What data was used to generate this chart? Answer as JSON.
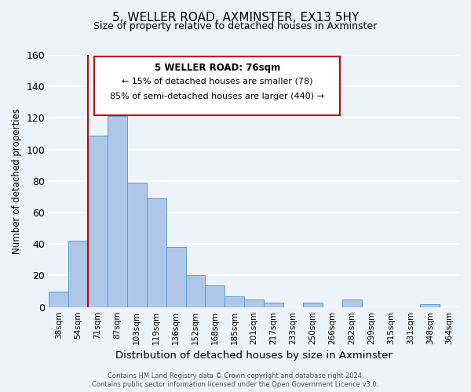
{
  "title": "5, WELLER ROAD, AXMINSTER, EX13 5HY",
  "subtitle": "Size of property relative to detached houses in Axminster",
  "xlabel": "Distribution of detached houses by size in Axminster",
  "ylabel": "Number of detached properties",
  "bin_labels": [
    "38sqm",
    "54sqm",
    "71sqm",
    "87sqm",
    "103sqm",
    "119sqm",
    "136sqm",
    "152sqm",
    "168sqm",
    "185sqm",
    "201sqm",
    "217sqm",
    "233sqm",
    "250sqm",
    "266sqm",
    "282sqm",
    "299sqm",
    "315sqm",
    "331sqm",
    "348sqm",
    "364sqm"
  ],
  "bar_heights": [
    10,
    42,
    109,
    121,
    79,
    69,
    38,
    20,
    14,
    7,
    5,
    3,
    0,
    3,
    0,
    5,
    0,
    0,
    0,
    2,
    0
  ],
  "bar_color": "#aec6e8",
  "bar_edge_color": "#5a9fd4",
  "red_line_bin": 2,
  "annotation_title": "5 WELLER ROAD: 76sqm",
  "annotation_line1": "← 15% of detached houses are smaller (78)",
  "annotation_line2": "85% of semi-detached houses are larger (440) →",
  "ylim": [
    0,
    160
  ],
  "yticks": [
    0,
    20,
    40,
    60,
    80,
    100,
    120,
    140,
    160
  ],
  "footer_line1": "Contains HM Land Registry data © Crown copyright and database right 2024.",
  "footer_line2": "Contains public sector information licensed under the Open Government Licence v3.0.",
  "background_color": "#eef2f9",
  "grid_color": "#ffffff",
  "annotation_box_color": "#ffffff",
  "annotation_box_edge": "#cc0000",
  "red_line_color": "#cc0000"
}
